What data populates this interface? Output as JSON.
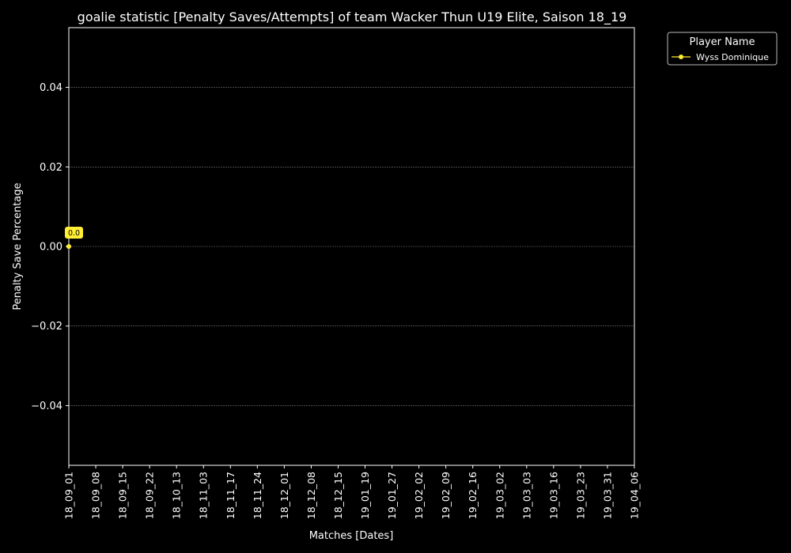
{
  "chart_data": {
    "type": "line",
    "title": "goalie statistic [Penalty Saves/Attempts] of team Wacker Thun U19 Elite, Saison 18_19",
    "xlabel": "Matches [Dates]",
    "ylabel": "Penalty Save Percentage",
    "categories": [
      "18_09_01",
      "18_09_08",
      "18_09_15",
      "18_09_22",
      "18_10_13",
      "18_11_03",
      "18_11_17",
      "18_11_24",
      "18_12_01",
      "18_12_08",
      "18_12_15",
      "19_01_19",
      "19_01_27",
      "19_02_02",
      "19_02_09",
      "19_02_16",
      "19_03_02",
      "19_03_03",
      "19_03_16",
      "19_03_23",
      "19_03_31",
      "19_04_06"
    ],
    "ylim": [
      -0.055,
      0.055
    ],
    "yticks": [
      0.04,
      0.02,
      0.0,
      -0.02,
      -0.04
    ],
    "ytick_labels": [
      "0.04",
      "0.02",
      "0.00",
      "−0.02",
      "−0.04"
    ],
    "grid": true,
    "legend": {
      "title": "Player Name",
      "placement": "top-right outside plot"
    },
    "series": [
      {
        "name": "Wyss Dominique",
        "color": "#ffee33",
        "points": [
          {
            "x": "18_09_01",
            "y": 0.0,
            "label": "0.0"
          }
        ]
      }
    ]
  }
}
